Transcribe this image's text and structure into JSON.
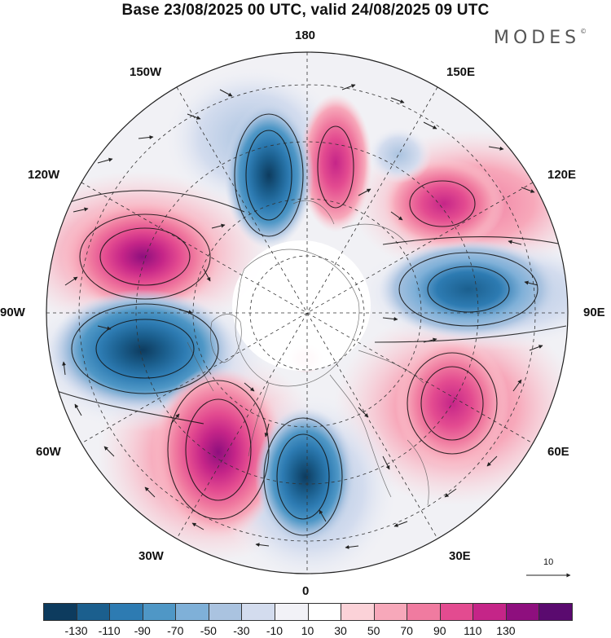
{
  "title": "Base 23/08/2025 00 UTC, valid 24/08/2025 09 UTC",
  "brand": "MODES",
  "brand_mark": "©",
  "longitude_labels": {
    "top": "180",
    "top_left": "150W",
    "top_right": "150E",
    "upper_left": "120W",
    "upper_right": "120E",
    "left": "90W",
    "right": "90E",
    "lower_left": "60W",
    "lower_right": "60E",
    "bottom_left": "30W",
    "bottom_right": "30E",
    "bottom": "0"
  },
  "reference_vector": {
    "label": "10"
  },
  "colorbar": {
    "colors": [
      "#0d3b5e",
      "#1b5f8e",
      "#2d7bb2",
      "#4f97c6",
      "#7fb0d8",
      "#aac3e0",
      "#d3dcee",
      "#f2f2f7",
      "#ffffff",
      "#fbd2d8",
      "#f7a8ba",
      "#f07ba0",
      "#e34b90",
      "#c52588",
      "#8e0f7e",
      "#5a0a6f"
    ],
    "ticks": [
      "-130",
      "-110",
      "-90",
      "-70",
      "-50",
      "-30",
      "-10",
      "10",
      "30",
      "50",
      "70",
      "90",
      "110",
      "130"
    ]
  },
  "anomaly_centers": [
    {
      "name": "pos-150w-120w",
      "sign": "positive",
      "value": 110
    },
    {
      "name": "neg-90w",
      "sign": "negative",
      "value": -120
    },
    {
      "name": "pos-60w-30w",
      "sign": "positive",
      "value": 110
    },
    {
      "name": "neg-0-30e",
      "sign": "negative",
      "value": -100
    },
    {
      "name": "pos-60e",
      "sign": "positive",
      "value": 90
    },
    {
      "name": "neg-90e",
      "sign": "negative",
      "value": -90
    },
    {
      "name": "pos-120e",
      "sign": "positive",
      "value": 80
    },
    {
      "name": "pos-180",
      "sign": "positive",
      "value": 70
    },
    {
      "name": "neg-150w-180",
      "sign": "negative",
      "value": -100
    }
  ]
}
